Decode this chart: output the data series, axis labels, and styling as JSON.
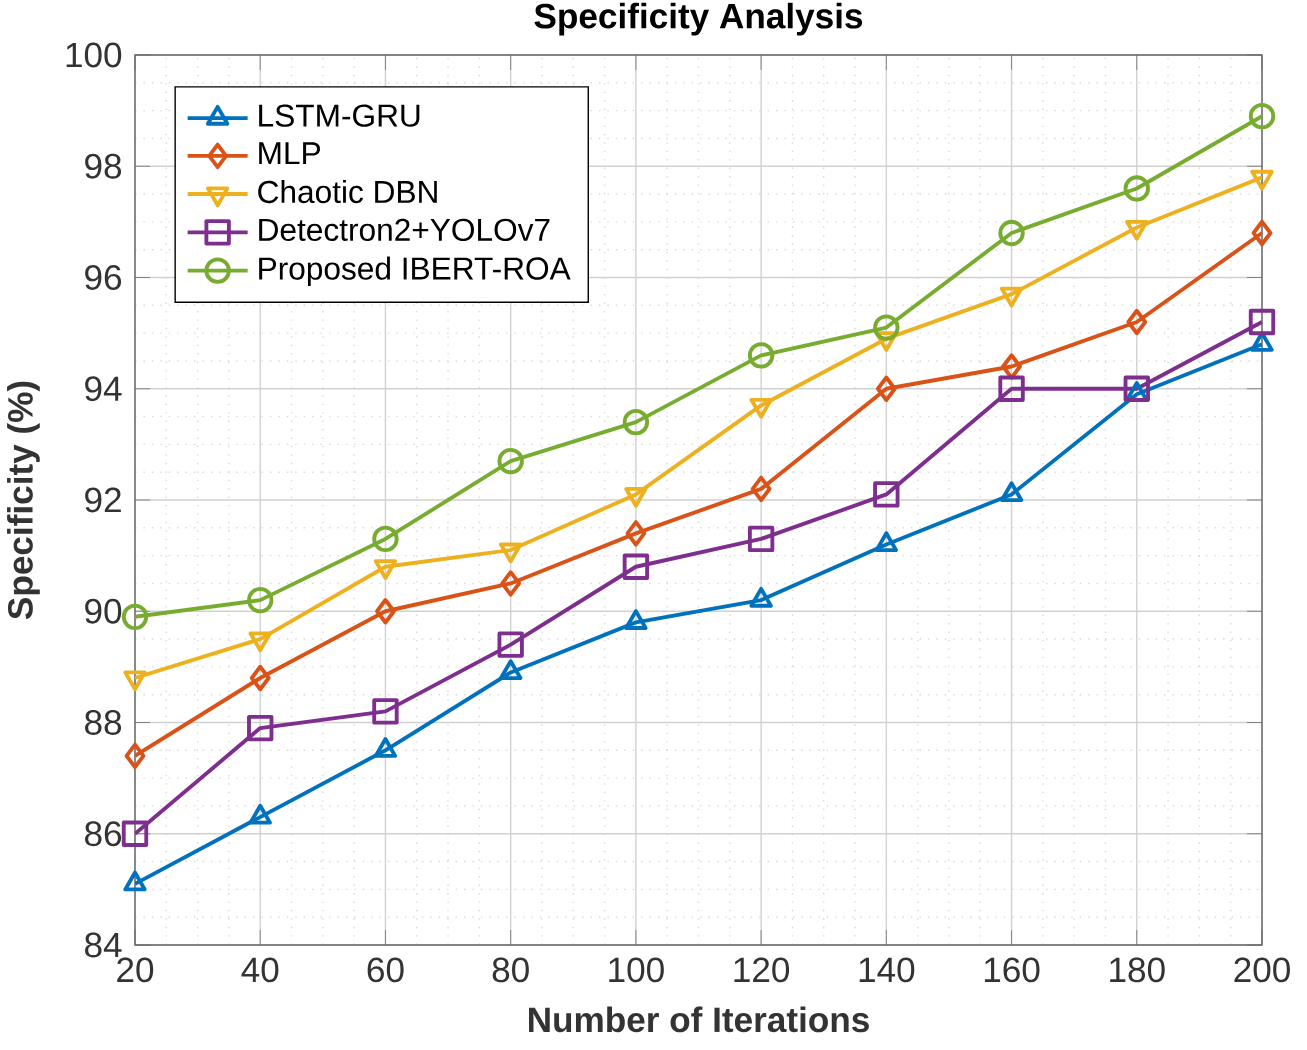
{
  "chart_data": {
    "type": "line",
    "title": "Specificity Analysis",
    "xlabel": "Number of Iterations",
    "ylabel": "Specificity (%)",
    "x": [
      20,
      40,
      60,
      80,
      100,
      120,
      140,
      160,
      180,
      200
    ],
    "xlim": [
      20,
      200
    ],
    "xticks": [
      20,
      40,
      60,
      80,
      100,
      120,
      140,
      160,
      180,
      200
    ],
    "ylim": [
      84,
      100
    ],
    "yticks": [
      84,
      86,
      88,
      90,
      92,
      94,
      96,
      98,
      100
    ],
    "grid": true,
    "legend": "top left",
    "line_style": "solid",
    "series": [
      {
        "name": "LSTM-GRU",
        "color": "#0072bd",
        "marker": "triangle",
        "values": [
          85.1,
          86.3,
          87.5,
          88.9,
          89.8,
          90.2,
          91.2,
          92.1,
          93.9,
          94.8
        ]
      },
      {
        "name": "MLP",
        "color": "#d95319",
        "marker": "diamond",
        "values": [
          87.4,
          88.8,
          90.0,
          90.5,
          91.4,
          92.2,
          94.0,
          94.4,
          95.2,
          96.8
        ]
      },
      {
        "name": "Chaotic DBN",
        "color": "#edb120",
        "marker": "triangle-down",
        "values": [
          88.8,
          89.5,
          90.8,
          91.1,
          92.1,
          93.7,
          94.9,
          95.7,
          96.9,
          97.8
        ]
      },
      {
        "name": "Detectron2+YOLOv7",
        "color": "#7e2f8e",
        "marker": "square",
        "values": [
          86.0,
          87.9,
          88.2,
          89.4,
          90.8,
          91.3,
          92.1,
          94.0,
          94.0,
          95.2
        ]
      },
      {
        "name": "Proposed IBERT-ROA",
        "color": "#77ac30",
        "marker": "circle",
        "values": [
          89.9,
          90.2,
          91.3,
          92.7,
          93.4,
          94.6,
          95.1,
          96.8,
          97.6,
          98.9
        ]
      }
    ]
  }
}
